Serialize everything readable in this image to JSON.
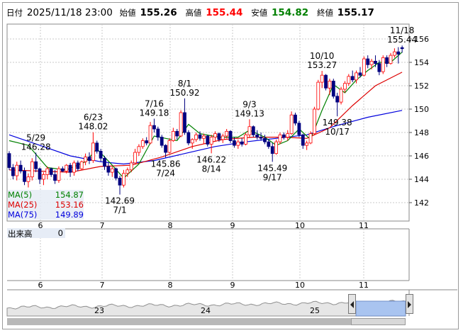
{
  "header": {
    "date_label": "日付",
    "datetime": "2025/11/18 23:00",
    "open_label": "始値",
    "open": "155.26",
    "high_label": "高値",
    "high": "155.44",
    "low_label": "安値",
    "low": "154.82",
    "close_label": "終値",
    "close": "155.17"
  },
  "colors": {
    "up": "#ff0000",
    "down": "#000080",
    "candle_fill": "#ffffff",
    "ma5": "#008000",
    "ma25": "#dd0000",
    "ma75": "#0000dd",
    "high_text": "#ff0000",
    "low_text": "#008000",
    "grid": "#c8c8c8",
    "nav_fill": "#a9c4f0",
    "nav_line": "#909090"
  },
  "legend": [
    {
      "name": "MA(5)",
      "value": "154.87",
      "color": "#008000"
    },
    {
      "name": "MA(25)",
      "value": "153.16",
      "color": "#dd0000"
    },
    {
      "name": "MA(75)",
      "value": "149.89",
      "color": "#0000dd"
    }
  ],
  "volume": {
    "label": "出来高",
    "value": "0"
  },
  "x_axis_labels": [
    "6",
    "7",
    "8",
    "9",
    "10",
    "11"
  ],
  "navigator_labels": [
    "23",
    "24",
    "25"
  ],
  "chart_data": {
    "type": "candlestick",
    "x_axis": "month (2025)",
    "y_axis_ticks": [
      142,
      144,
      146,
      148,
      150,
      152,
      154,
      156
    ],
    "ylim": [
      140.8,
      157.0
    ],
    "grid": true,
    "candles": [
      [
        146.2,
        146.4,
        144.8,
        145.0
      ],
      [
        145.0,
        145.3,
        144.0,
        144.3
      ],
      [
        144.3,
        145.5,
        143.9,
        145.2
      ],
      [
        145.2,
        145.6,
        144.5,
        144.7
      ],
      [
        144.7,
        145.0,
        143.5,
        143.8
      ],
      [
        143.8,
        144.5,
        143.3,
        144.2
      ],
      [
        144.2,
        145.8,
        143.9,
        145.5
      ],
      [
        145.5,
        146.28,
        144.6,
        144.9
      ],
      [
        144.9,
        145.0,
        143.6,
        144.0
      ],
      [
        144.0,
        144.6,
        143.5,
        144.4
      ],
      [
        144.4,
        145.1,
        144.0,
        144.9
      ],
      [
        144.9,
        145.0,
        144.2,
        144.4
      ],
      [
        144.4,
        144.8,
        143.6,
        143.9
      ],
      [
        143.9,
        145.1,
        143.7,
        144.9
      ],
      [
        144.9,
        145.1,
        144.6,
        144.7
      ],
      [
        144.7,
        145.3,
        144.5,
        145.2
      ],
      [
        145.2,
        145.4,
        144.2,
        144.6
      ],
      [
        144.6,
        145.6,
        144.3,
        145.4
      ],
      [
        145.4,
        145.6,
        144.7,
        144.9
      ],
      [
        144.9,
        145.6,
        144.8,
        145.5
      ],
      [
        145.5,
        146.2,
        145.2,
        145.9
      ],
      [
        145.9,
        146.3,
        145.3,
        145.6
      ],
      [
        145.6,
        148.02,
        145.4,
        147.1
      ],
      [
        147.1,
        147.3,
        146.2,
        146.4
      ],
      [
        146.4,
        146.6,
        145.5,
        145.8
      ],
      [
        145.8,
        146.0,
        144.8,
        145.1
      ],
      [
        145.1,
        145.4,
        144.3,
        144.6
      ],
      [
        144.6,
        145.1,
        144.2,
        144.9
      ],
      [
        144.9,
        145.0,
        143.9,
        144.1
      ],
      [
        144.1,
        144.3,
        142.69,
        143.5
      ],
      [
        143.5,
        144.8,
        143.3,
        144.5
      ],
      [
        144.5,
        145.0,
        144.2,
        144.8
      ],
      [
        144.8,
        145.6,
        144.6,
        145.4
      ],
      [
        145.4,
        146.6,
        145.3,
        146.3
      ],
      [
        146.3,
        147.0,
        146.0,
        146.8
      ],
      [
        146.8,
        147.5,
        146.6,
        147.3
      ],
      [
        147.3,
        147.6,
        146.9,
        147.1
      ],
      [
        147.1,
        148.9,
        147.0,
        148.6
      ],
      [
        148.6,
        149.18,
        148.0,
        148.3
      ],
      [
        148.3,
        148.5,
        147.3,
        147.6
      ],
      [
        147.6,
        147.8,
        146.7,
        146.9
      ],
      [
        146.9,
        147.0,
        145.86,
        146.3
      ],
      [
        146.3,
        147.5,
        146.2,
        147.3
      ],
      [
        147.3,
        148.4,
        147.2,
        148.1
      ],
      [
        148.1,
        148.3,
        147.4,
        147.7
      ],
      [
        147.7,
        149.9,
        147.6,
        149.7
      ],
      [
        149.7,
        150.92,
        147.8,
        148.0
      ],
      [
        148.0,
        148.2,
        146.9,
        147.1
      ],
      [
        147.1,
        147.5,
        146.6,
        147.4
      ],
      [
        147.4,
        148.0,
        147.2,
        147.8
      ],
      [
        147.8,
        148.1,
        147.3,
        147.5
      ],
      [
        147.5,
        147.9,
        147.0,
        147.7
      ],
      [
        147.7,
        147.8,
        146.8,
        147.0
      ],
      [
        147.0,
        147.8,
        146.22,
        147.6
      ],
      [
        147.6,
        148.1,
        147.3,
        147.9
      ],
      [
        147.9,
        148.0,
        147.2,
        147.4
      ],
      [
        147.4,
        147.9,
        147.1,
        147.7
      ],
      [
        147.7,
        148.3,
        147.5,
        148.1
      ],
      [
        148.1,
        148.2,
        147.1,
        147.3
      ],
      [
        147.3,
        147.6,
        146.7,
        146.9
      ],
      [
        146.9,
        147.4,
        146.6,
        147.2
      ],
      [
        147.2,
        147.5,
        146.8,
        147.0
      ],
      [
        147.0,
        148.0,
        146.9,
        147.8
      ],
      [
        147.8,
        149.13,
        147.6,
        148.5
      ],
      [
        148.5,
        148.6,
        147.6,
        147.8
      ],
      [
        147.8,
        148.2,
        147.4,
        147.6
      ],
      [
        147.6,
        148.0,
        147.3,
        147.5
      ],
      [
        147.5,
        147.8,
        147.0,
        147.2
      ],
      [
        147.2,
        147.4,
        146.6,
        146.8
      ],
      [
        146.8,
        147.1,
        145.49,
        146.2
      ],
      [
        146.2,
        147.4,
        146.1,
        147.2
      ],
      [
        147.2,
        148.0,
        147.0,
        147.8
      ],
      [
        147.8,
        148.0,
        147.4,
        147.6
      ],
      [
        147.6,
        148.2,
        147.3,
        147.9
      ],
      [
        147.9,
        149.8,
        147.8,
        149.5
      ],
      [
        149.5,
        149.7,
        148.6,
        148.8
      ],
      [
        148.8,
        149.0,
        147.6,
        147.8
      ],
      [
        147.8,
        147.9,
        146.6,
        146.9
      ],
      [
        146.9,
        147.3,
        146.5,
        147.1
      ],
      [
        147.1,
        148.1,
        147.0,
        147.9
      ],
      [
        147.9,
        150.2,
        147.8,
        150.0
      ],
      [
        150.0,
        152.5,
        149.9,
        152.3
      ],
      [
        152.3,
        153.27,
        151.8,
        152.9
      ],
      [
        152.9,
        153.0,
        151.6,
        151.8
      ],
      [
        151.8,
        152.6,
        151.2,
        152.4
      ],
      [
        152.4,
        152.6,
        150.9,
        151.1
      ],
      [
        151.1,
        151.4,
        149.38,
        150.6
      ],
      [
        150.6,
        151.9,
        150.4,
        151.7
      ],
      [
        151.7,
        152.4,
        151.4,
        152.2
      ],
      [
        152.2,
        153.0,
        152.0,
        152.8
      ],
      [
        152.8,
        153.3,
        152.3,
        152.5
      ],
      [
        152.5,
        153.3,
        152.2,
        153.1
      ],
      [
        153.1,
        153.6,
        152.7,
        152.9
      ],
      [
        152.9,
        154.5,
        152.8,
        154.3
      ],
      [
        154.3,
        154.6,
        153.5,
        153.8
      ],
      [
        153.8,
        154.3,
        153.4,
        154.1
      ],
      [
        154.1,
        154.6,
        153.6,
        153.9
      ],
      [
        153.9,
        154.2,
        152.9,
        153.2
      ],
      [
        153.2,
        154.6,
        153.0,
        154.4
      ],
      [
        154.4,
        154.6,
        153.6,
        153.9
      ],
      [
        153.9,
        154.8,
        153.8,
        154.6
      ],
      [
        154.6,
        155.2,
        154.4,
        154.9
      ],
      [
        154.9,
        155.3,
        153.9,
        154.7
      ],
      [
        155.26,
        155.44,
        154.82,
        155.17
      ]
    ],
    "ma5": [
      [
        0,
        147.3
      ],
      [
        5,
        146.9
      ],
      [
        10,
        145.0
      ],
      [
        15,
        144.8
      ],
      [
        20,
        145.5
      ],
      [
        23,
        146.6
      ],
      [
        27,
        145.2
      ],
      [
        30,
        144.1
      ],
      [
        34,
        145.3
      ],
      [
        38,
        147.7
      ],
      [
        41,
        147.5
      ],
      [
        44,
        147.3
      ],
      [
        47,
        148.7
      ],
      [
        50,
        147.9
      ],
      [
        55,
        147.6
      ],
      [
        60,
        147.6
      ],
      [
        63,
        148.2
      ],
      [
        67,
        147.6
      ],
      [
        70,
        146.9
      ],
      [
        73,
        147.3
      ],
      [
        76,
        148.3
      ],
      [
        79,
        147.4
      ],
      [
        82,
        149.9
      ],
      [
        85,
        152.1
      ],
      [
        88,
        151.4
      ],
      [
        91,
        152.5
      ],
      [
        94,
        153.3
      ],
      [
        97,
        154.0
      ],
      [
        100,
        154.0
      ],
      [
        103,
        154.87
      ]
    ],
    "ma25": [
      [
        0,
        144.8
      ],
      [
        8,
        144.7
      ],
      [
        16,
        144.6
      ],
      [
        24,
        145.1
      ],
      [
        32,
        145.2
      ],
      [
        40,
        145.9
      ],
      [
        48,
        146.8
      ],
      [
        56,
        147.4
      ],
      [
        64,
        147.6
      ],
      [
        72,
        147.6
      ],
      [
        78,
        147.5
      ],
      [
        84,
        148.4
      ],
      [
        90,
        150.3
      ],
      [
        96,
        152.0
      ],
      [
        103,
        153.16
      ]
    ],
    "ma75": [
      [
        0,
        147.8
      ],
      [
        8,
        146.9
      ],
      [
        16,
        146.0
      ],
      [
        24,
        145.5
      ],
      [
        30,
        145.3
      ],
      [
        38,
        145.6
      ],
      [
        46,
        146.2
      ],
      [
        54,
        146.8
      ],
      [
        62,
        147.2
      ],
      [
        70,
        147.5
      ],
      [
        78,
        147.8
      ],
      [
        86,
        148.6
      ],
      [
        94,
        149.3
      ],
      [
        103,
        149.89
      ]
    ],
    "annotations": [
      {
        "text": "5/29",
        "value": "146.28",
        "index": 7,
        "pos": "above"
      },
      {
        "text": "6/23",
        "value": "148.02",
        "index": 22,
        "pos": "above"
      },
      {
        "text": "7/1",
        "value": "142.69",
        "index": 29,
        "pos": "below"
      },
      {
        "text": "7/16",
        "value": "149.18",
        "index": 38,
        "pos": "above"
      },
      {
        "text": "7/24",
        "value": "145.86",
        "index": 41,
        "pos": "below"
      },
      {
        "text": "8/1",
        "value": "150.92",
        "index": 46,
        "pos": "above"
      },
      {
        "text": "8/14",
        "value": "146.22",
        "index": 53,
        "pos": "below"
      },
      {
        "text": "9/3",
        "value": "149.13",
        "index": 63,
        "pos": "above"
      },
      {
        "text": "9/17",
        "value": "145.49",
        "index": 69,
        "pos": "below"
      },
      {
        "text": "10/10",
        "value": "153.27",
        "index": 82,
        "pos": "above"
      },
      {
        "text": "10/17",
        "value": "149.38",
        "index": 86,
        "pos": "below"
      },
      {
        "text": "11/18",
        "value": "155.44",
        "index": 103,
        "pos": "above"
      }
    ]
  }
}
